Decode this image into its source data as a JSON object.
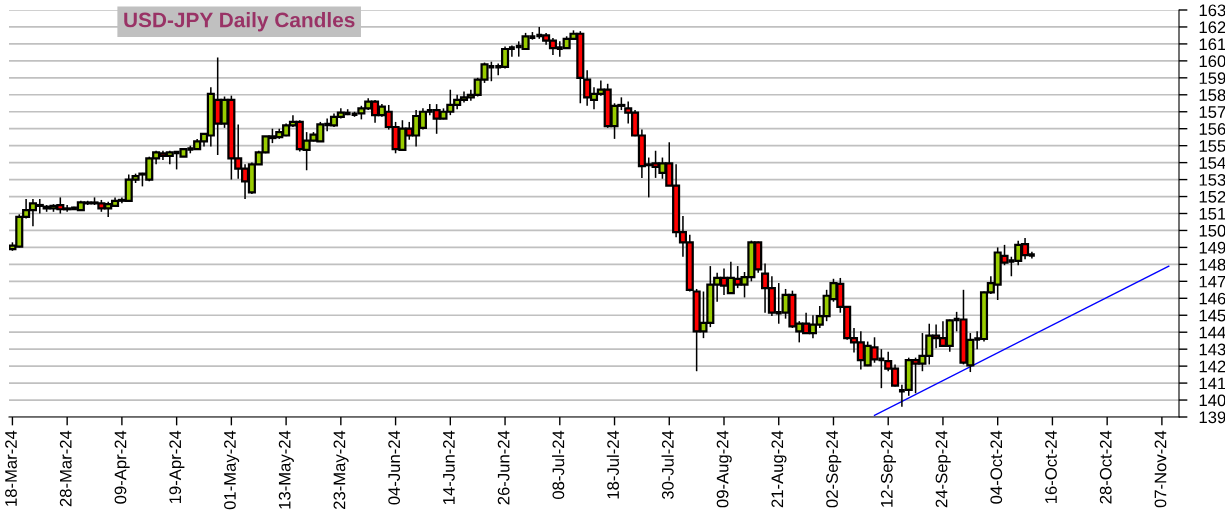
{
  "chart_data": {
    "type": "candlestick",
    "title": "USD-JPY Daily Candles",
    "categories": [
      "18-Mar-24",
      null,
      null,
      null,
      null,
      null,
      null,
      null,
      "28-Mar-24",
      null,
      null,
      null,
      null,
      null,
      null,
      null,
      "09-Apr-24",
      null,
      null,
      null,
      null,
      null,
      null,
      null,
      "19-Apr-24",
      null,
      null,
      null,
      null,
      null,
      null,
      null,
      "01-May-24",
      null,
      null,
      null,
      null,
      null,
      null,
      null,
      "13-May-24",
      null,
      null,
      null,
      null,
      null,
      null,
      null,
      "23-May-24",
      null,
      null,
      null,
      null,
      null,
      null,
      null,
      "04-Jun-24",
      null,
      null,
      null,
      null,
      null,
      null,
      null,
      "14-Jun-24",
      null,
      null,
      null,
      null,
      null,
      null,
      null,
      "26-Jun-24",
      null,
      null,
      null,
      null,
      null,
      null,
      null,
      "08-Jul-24",
      null,
      null,
      null,
      null,
      null,
      null,
      null,
      "18-Jul-24",
      null,
      null,
      null,
      null,
      null,
      null,
      null,
      "30-Jul-24",
      null,
      null,
      null,
      null,
      null,
      null,
      null,
      "09-Aug-24",
      null,
      null,
      null,
      null,
      null,
      null,
      null,
      "21-Aug-24",
      null,
      null,
      null,
      null,
      null,
      null,
      null,
      "02-Sep-24",
      null,
      null,
      null,
      null,
      null,
      null,
      null,
      "12-Sep-24",
      null,
      null,
      null,
      null,
      null,
      null,
      null,
      "24-Sep-24",
      null,
      null,
      null,
      null,
      null,
      null,
      null,
      "04-Oct-24",
      null,
      null,
      null,
      null,
      null,
      null,
      null,
      "16-Oct-24",
      null,
      null,
      null,
      null,
      null,
      null,
      null,
      "28-Oct-24",
      null,
      null,
      null,
      null,
      null,
      null,
      null,
      "07-Nov-24",
      null,
      null
    ],
    "colors": [
      "#99cc00",
      "#99cc00",
      "#99cc00",
      "#99cc00",
      "#ff0000",
      "#99cc00",
      "#99cc00",
      "#ff0000",
      "#99cc00",
      "#000000",
      "#99cc00",
      "#99cc00",
      "#99cc00",
      "#ff0000",
      "#99cc00",
      "#99cc00",
      "#99cc00",
      "#99cc00",
      "#99cc00",
      "#99cc00",
      "#99cc00",
      "#99cc00",
      "#ff0000",
      "#99cc00",
      "#000000",
      "#99cc00",
      "#000000",
      "#99cc00",
      "#99cc00",
      "#99cc00",
      "#ff0000",
      "#99cc00",
      "#ff0000",
      "#ff0000",
      "#ff0000",
      "#99cc00",
      "#99cc00",
      "#99cc00",
      "#99cc00",
      "#99cc00",
      "#99cc00",
      "#99cc00",
      "#ff0000",
      "#99cc00",
      "#99cc00",
      "#99cc00",
      "#000000",
      "#99cc00",
      "#99cc00",
      "#000000",
      "#000000",
      "#99cc00",
      "#99cc00",
      "#ff0000",
      "#99cc00",
      "#ff0000",
      "#ff0000",
      "#99cc00",
      "#ff0000",
      "#99cc00",
      "#99cc00",
      "#000000",
      "#ff0000",
      "#99cc00",
      "#99cc00",
      "#99cc00",
      "#99cc00",
      "#99cc00",
      "#99cc00",
      "#99cc00",
      "#000000",
      "#000000",
      "#99cc00",
      "#000000",
      "#000000",
      "#99cc00",
      "#000000",
      "#000000",
      "#ff0000",
      "#ff0000",
      "#000000",
      "#99cc00",
      "#99cc00",
      "#ff0000",
      "#ff0000",
      "#99cc00",
      "#99cc00",
      "#ff0000",
      "#99cc00",
      "#99cc00",
      "#ff0000",
      "#ff0000",
      "#ff0000",
      "#99cc00",
      "#ff0000",
      "#99cc00",
      "#ff0000",
      "#ff0000",
      "#ff0000",
      "#ff0000",
      "#ff0000",
      "#99cc00",
      "#99cc00",
      "#99cc00",
      "#ff0000",
      "#99cc00",
      "#ff0000",
      "#99cc00",
      "#99cc00",
      "#ff0000",
      "#ff0000",
      "#ff0000",
      "#000000",
      "#99cc00",
      "#ff0000",
      "#99cc00",
      "#ff0000",
      "#99cc00",
      "#99cc00",
      "#99cc00",
      "#99cc00",
      "#ff0000",
      "#ff0000",
      "#ff0000",
      "#ff0000",
      "#99cc00",
      "#ff0000",
      "#000000",
      "#ff0000",
      "#ff0000",
      "#000000",
      "#99cc00",
      "#ff0000",
      "#99cc00",
      "#99cc00",
      "#ff0000",
      "#ff0000",
      "#99cc00",
      "#000000",
      "#ff0000",
      "#99cc00",
      "#000000",
      "#99cc00",
      "#99cc00",
      "#99cc00",
      "#ff0000",
      "#000000",
      "#99cc00",
      "#ff0000",
      "#000000",
      null,
      null,
      null,
      null,
      null,
      null,
      null,
      null,
      null,
      null,
      null,
      null,
      null,
      null,
      null,
      null,
      null,
      null,
      null,
      null,
      null
    ],
    "ohlc": [
      [
        148.9,
        149.3,
        148.8,
        149.1
      ],
      [
        149.05,
        150.95,
        149.0,
        150.8
      ],
      [
        150.8,
        151.85,
        150.7,
        151.2
      ],
      [
        151.2,
        151.85,
        150.25,
        151.6
      ],
      [
        151.5,
        151.85,
        151.0,
        151.45
      ],
      [
        151.3,
        151.5,
        151.1,
        151.4
      ],
      [
        151.3,
        151.55,
        151.1,
        151.45
      ],
      [
        151.5,
        151.95,
        151.0,
        151.25
      ],
      [
        151.25,
        151.5,
        151.1,
        151.3
      ],
      [
        151.3,
        151.4,
        151.2,
        151.3
      ],
      [
        151.2,
        151.75,
        151.15,
        151.65
      ],
      [
        151.6,
        151.75,
        151.5,
        151.65
      ],
      [
        151.6,
        151.95,
        151.5,
        151.65
      ],
      [
        151.6,
        151.8,
        151.1,
        151.3
      ],
      [
        151.3,
        151.7,
        150.8,
        151.55
      ],
      [
        151.45,
        151.95,
        151.4,
        151.75
      ],
      [
        151.75,
        151.95,
        151.6,
        151.8
      ],
      [
        151.75,
        153.3,
        151.7,
        153.0
      ],
      [
        153.0,
        153.35,
        152.8,
        153.2
      ],
      [
        153.3,
        153.4,
        152.6,
        153.35
      ],
      [
        153.0,
        154.35,
        152.9,
        154.25
      ],
      [
        154.25,
        154.7,
        153.9,
        154.6
      ],
      [
        154.55,
        154.7,
        154.15,
        154.4
      ],
      [
        154.4,
        154.7,
        153.9,
        154.6
      ],
      [
        154.6,
        154.65,
        153.6,
        154.6
      ],
      [
        154.35,
        154.85,
        154.35,
        154.8
      ],
      [
        154.8,
        155.0,
        154.55,
        154.8
      ],
      [
        154.8,
        155.4,
        154.8,
        155.25
      ],
      [
        155.25,
        155.75,
        154.95,
        155.7
      ],
      [
        155.6,
        158.45,
        154.95,
        158.05
      ],
      [
        157.7,
        160.2,
        154.45,
        156.3
      ],
      [
        156.3,
        157.9,
        156.05,
        157.7
      ],
      [
        157.7,
        157.95,
        153.0,
        154.25
      ],
      [
        154.25,
        156.25,
        153.05,
        153.65
      ],
      [
        153.65,
        153.9,
        151.85,
        152.9
      ],
      [
        152.25,
        154.0,
        152.15,
        153.9
      ],
      [
        153.9,
        154.7,
        153.9,
        154.6
      ],
      [
        154.6,
        155.55,
        154.55,
        155.55
      ],
      [
        155.45,
        156.0,
        155.15,
        155.55
      ],
      [
        155.5,
        156.0,
        155.4,
        155.8
      ],
      [
        155.6,
        156.3,
        155.55,
        156.2
      ],
      [
        156.2,
        156.8,
        156.1,
        156.4
      ],
      [
        156.4,
        156.5,
        154.65,
        154.8
      ],
      [
        154.75,
        155.8,
        153.55,
        155.3
      ],
      [
        155.3,
        155.8,
        155.25,
        155.65
      ],
      [
        155.25,
        156.4,
        155.25,
        156.25
      ],
      [
        156.25,
        156.6,
        155.85,
        156.25
      ],
      [
        156.2,
        156.9,
        156.1,
        156.7
      ],
      [
        156.7,
        157.2,
        156.6,
        156.95
      ],
      [
        156.9,
        157.15,
        156.8,
        156.9
      ],
      [
        156.85,
        157.0,
        156.7,
        156.85
      ],
      [
        156.9,
        157.35,
        156.55,
        157.2
      ],
      [
        157.2,
        157.8,
        157.1,
        157.6
      ],
      [
        157.6,
        157.7,
        156.35,
        156.8
      ],
      [
        156.8,
        157.45,
        156.7,
        157.3
      ],
      [
        157.0,
        157.4,
        155.95,
        156.1
      ],
      [
        156.1,
        156.4,
        154.55,
        154.8
      ],
      [
        154.75,
        156.5,
        154.7,
        156.0
      ],
      [
        156.0,
        156.4,
        155.35,
        155.6
      ],
      [
        155.6,
        157.1,
        154.95,
        156.75
      ],
      [
        156.05,
        157.2,
        155.95,
        157.0
      ],
      [
        157.05,
        157.45,
        156.8,
        157.05
      ],
      [
        157.1,
        157.45,
        155.7,
        156.6
      ],
      [
        156.6,
        157.2,
        156.55,
        157.0
      ],
      [
        157.0,
        158.3,
        156.8,
        157.4
      ],
      [
        157.4,
        158.0,
        157.15,
        157.7
      ],
      [
        157.7,
        158.2,
        157.55,
        157.85
      ],
      [
        157.85,
        158.3,
        157.65,
        158.0
      ],
      [
        158.0,
        159.0,
        157.9,
        158.9
      ],
      [
        158.9,
        159.9,
        158.7,
        159.8
      ],
      [
        159.65,
        159.95,
        158.8,
        159.65
      ],
      [
        159.65,
        159.85,
        159.15,
        159.65
      ],
      [
        159.65,
        160.85,
        159.55,
        160.7
      ],
      [
        160.75,
        160.9,
        160.25,
        160.75
      ],
      [
        160.85,
        161.15,
        160.25,
        160.85
      ],
      [
        160.7,
        161.65,
        160.65,
        161.45
      ],
      [
        161.4,
        161.7,
        161.25,
        161.4
      ],
      [
        161.5,
        162.0,
        161.3,
        161.5
      ],
      [
        161.5,
        161.65,
        160.95,
        161.2
      ],
      [
        161.2,
        161.35,
        160.35,
        160.75
      ],
      [
        160.75,
        161.15,
        160.25,
        160.75
      ],
      [
        160.75,
        161.45,
        160.75,
        161.3
      ],
      [
        161.3,
        161.8,
        161.25,
        161.6
      ],
      [
        161.6,
        161.75,
        157.5,
        159.0
      ],
      [
        158.9,
        159.45,
        157.35,
        157.85
      ],
      [
        157.7,
        158.45,
        157.15,
        158.05
      ],
      [
        158.05,
        158.85,
        157.95,
        158.3
      ],
      [
        158.3,
        158.65,
        156.05,
        156.15
      ],
      [
        156.15,
        157.5,
        155.4,
        157.35
      ],
      [
        157.35,
        157.85,
        157.1,
        157.4
      ],
      [
        157.2,
        157.6,
        156.3,
        156.95
      ],
      [
        156.95,
        157.1,
        155.55,
        155.6
      ],
      [
        155.6,
        155.95,
        153.1,
        153.8
      ],
      [
        153.85,
        154.3,
        151.95,
        153.9
      ],
      [
        153.95,
        154.7,
        153.1,
        153.75
      ],
      [
        153.4,
        154.3,
        153.05,
        153.95
      ],
      [
        153.95,
        155.2,
        152.65,
        152.65
      ],
      [
        152.65,
        153.9,
        149.6,
        149.9
      ],
      [
        149.9,
        150.85,
        148.45,
        149.3
      ],
      [
        149.3,
        149.75,
        146.4,
        146.5
      ],
      [
        146.4,
        146.55,
        141.7,
        144.05
      ],
      [
        144.05,
        146.4,
        143.65,
        144.55
      ],
      [
        144.55,
        147.9,
        144.3,
        146.8
      ],
      [
        146.8,
        147.5,
        145.8,
        147.2
      ],
      [
        147.2,
        147.75,
        146.2,
        146.75
      ],
      [
        146.3,
        148.15,
        146.25,
        147.2
      ],
      [
        147.15,
        147.9,
        146.6,
        146.8
      ],
      [
        146.8,
        147.55,
        146.05,
        147.25
      ],
      [
        147.25,
        149.4,
        147.0,
        149.3
      ],
      [
        149.3,
        149.35,
        147.5,
        147.7
      ],
      [
        147.45,
        148.05,
        145.15,
        146.6
      ],
      [
        146.6,
        147.3,
        144.95,
        145.15
      ],
      [
        145.15,
        146.9,
        144.5,
        145.15
      ],
      [
        145.15,
        146.55,
        144.8,
        146.2
      ],
      [
        146.2,
        146.45,
        144.25,
        144.35
      ],
      [
        144.05,
        144.65,
        143.4,
        144.5
      ],
      [
        144.5,
        145.15,
        143.95,
        143.95
      ],
      [
        143.95,
        145.0,
        143.65,
        144.45
      ],
      [
        144.45,
        145.55,
        144.25,
        144.95
      ],
      [
        144.95,
        146.5,
        144.65,
        146.15
      ],
      [
        145.95,
        147.15,
        145.8,
        146.9
      ],
      [
        146.85,
        147.2,
        145.15,
        145.5
      ],
      [
        145.5,
        145.55,
        143.55,
        143.65
      ],
      [
        143.65,
        144.25,
        142.8,
        143.4
      ],
      [
        143.4,
        144.05,
        141.8,
        142.35
      ],
      [
        142.05,
        143.45,
        142.0,
        143.2
      ],
      [
        143.1,
        143.7,
        142.2,
        142.4
      ],
      [
        142.4,
        143.0,
        140.7,
        142.4
      ],
      [
        142.3,
        142.85,
        141.7,
        141.85
      ],
      [
        141.85,
        142.1,
        140.8,
        140.85
      ],
      [
        140.55,
        140.9,
        139.6,
        140.55
      ],
      [
        140.6,
        142.5,
        140.25,
        142.35
      ],
      [
        142.35,
        142.5,
        140.4,
        142.15
      ],
      [
        142.15,
        143.95,
        141.7,
        142.6
      ],
      [
        142.6,
        144.5,
        142.1,
        143.8
      ],
      [
        143.8,
        144.45,
        143.05,
        143.65
      ],
      [
        143.65,
        144.65,
        143.15,
        143.2
      ],
      [
        143.2,
        144.75,
        142.85,
        144.7
      ],
      [
        144.75,
        145.2,
        144.05,
        144.75
      ],
      [
        144.75,
        146.5,
        142.1,
        142.2
      ],
      [
        142.05,
        143.95,
        141.65,
        143.55
      ],
      [
        143.6,
        144.05,
        143.0,
        143.6
      ],
      [
        143.6,
        146.4,
        143.45,
        146.35
      ],
      [
        146.35,
        147.3,
        146.25,
        146.9
      ],
      [
        146.8,
        149.0,
        145.9,
        148.7
      ],
      [
        148.5,
        149.15,
        147.95,
        148.1
      ],
      [
        148.2,
        148.45,
        147.3,
        148.2
      ],
      [
        148.2,
        149.4,
        147.95,
        149.15
      ],
      [
        149.2,
        149.55,
        148.3,
        148.55
      ],
      [
        148.55,
        148.75,
        148.35,
        148.55
      ],
      null,
      null,
      null,
      null,
      null,
      null,
      null,
      null,
      null,
      null,
      null,
      null,
      null,
      null,
      null,
      null,
      null,
      null,
      null,
      null,
      null
    ],
    "series": [
      {
        "type": "line",
        "color": "#0000ff",
        "values": [
          null,
          null,
          null,
          null,
          null,
          null,
          null,
          null,
          null,
          null,
          null,
          null,
          null,
          null,
          null,
          null,
          null,
          null,
          null,
          null,
          null,
          null,
          null,
          null,
          null,
          null,
          null,
          null,
          null,
          null,
          null,
          null,
          null,
          null,
          null,
          null,
          null,
          null,
          null,
          null,
          null,
          null,
          null,
          null,
          null,
          null,
          null,
          null,
          null,
          null,
          null,
          null,
          null,
          null,
          null,
          null,
          null,
          null,
          null,
          null,
          null,
          null,
          null,
          null,
          null,
          null,
          null,
          null,
          null,
          null,
          null,
          null,
          null,
          null,
          null,
          null,
          null,
          null,
          null,
          null,
          null,
          null,
          null,
          null,
          null,
          null,
          null,
          null,
          null,
          null,
          null,
          null,
          null,
          null,
          null,
          null,
          null,
          null,
          null,
          null,
          null,
          null,
          null,
          null,
          null,
          null,
          null,
          null,
          null,
          null,
          null,
          null,
          null,
          null,
          null,
          null,
          null,
          null,
          null,
          null,
          null,
          null,
          null,
          null,
          null,
          null,
          139.1,
          null,
          null,
          null,
          null,
          null,
          null,
          null,
          null,
          null,
          null,
          null,
          null,
          null,
          null,
          null,
          null,
          null,
          null,
          null,
          null,
          null,
          null,
          null,
          null,
          null,
          null,
          null,
          null,
          null,
          null,
          null,
          null,
          null,
          null,
          null,
          null,
          null,
          null,
          null,
          null,
          null,
          null,
          147.9,
          null
        ]
      }
    ],
    "ylim": [
      139,
      163
    ],
    "yticks": [
      139,
      140,
      141,
      142,
      143,
      144,
      145,
      146,
      147,
      148,
      149,
      150,
      151,
      152,
      153,
      154,
      155,
      156,
      157,
      158,
      159,
      160,
      161,
      162,
      163
    ],
    "grid": "y"
  }
}
